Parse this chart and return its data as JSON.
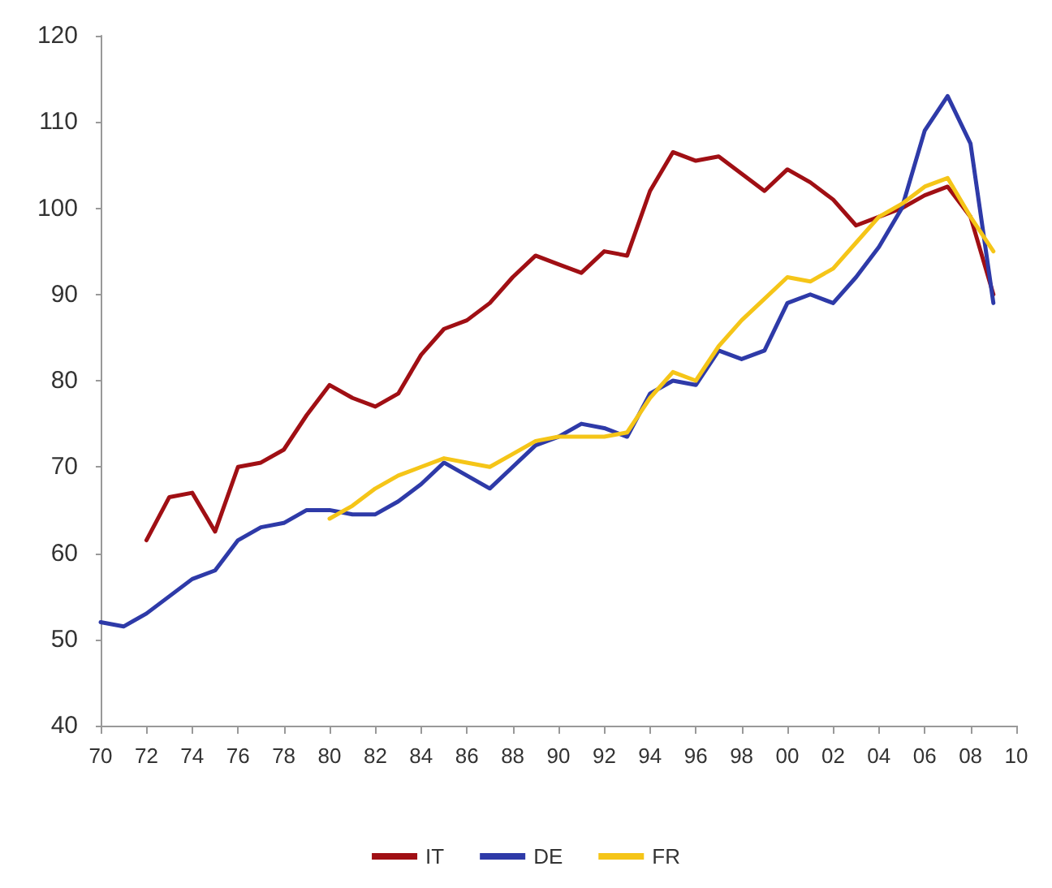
{
  "chart_data": {
    "type": "line",
    "x": [
      1970,
      1971,
      1972,
      1973,
      1974,
      1975,
      1976,
      1977,
      1978,
      1979,
      1980,
      1981,
      1982,
      1983,
      1984,
      1985,
      1986,
      1987,
      1988,
      1989,
      1990,
      1991,
      1992,
      1993,
      1994,
      1995,
      1996,
      1997,
      1998,
      1999,
      2000,
      2001,
      2002,
      2003,
      2004,
      2005,
      2006,
      2007,
      2008,
      2009
    ],
    "series": [
      {
        "name": "IT",
        "color": "#a00f14",
        "values": [
          null,
          null,
          61.5,
          66.5,
          67,
          62.5,
          70,
          70.5,
          72,
          76,
          79.5,
          78,
          77,
          78.5,
          83,
          86,
          87,
          89,
          92,
          94.5,
          93.5,
          92.5,
          95,
          94.5,
          102,
          106.5,
          105.5,
          106,
          104,
          102,
          104.5,
          103,
          101,
          98,
          99,
          100,
          101.5,
          102.5,
          99,
          90
        ]
      },
      {
        "name": "DE",
        "color": "#2e3aa8",
        "values": [
          52,
          51.5,
          53,
          55,
          57,
          58,
          61.5,
          63,
          63.5,
          65,
          65,
          64.5,
          64.5,
          66,
          68,
          70.5,
          69,
          67.5,
          70,
          72.5,
          73.5,
          75,
          74.5,
          73.5,
          78.5,
          80,
          79.5,
          83.5,
          82.5,
          83.5,
          89,
          90,
          89,
          92,
          95.5,
          100,
          109,
          113,
          107.5,
          89
        ]
      },
      {
        "name": "FR",
        "color": "#f5c518",
        "values": [
          null,
          null,
          null,
          null,
          null,
          null,
          null,
          null,
          null,
          null,
          64,
          65.5,
          67.5,
          69,
          70,
          71,
          70.5,
          70,
          71.5,
          73,
          73.5,
          73.5,
          73.5,
          74,
          78,
          81,
          80,
          84,
          87,
          89.5,
          92,
          91.5,
          93,
          96,
          99,
          100.5,
          102.5,
          103.5,
          99,
          95
        ]
      }
    ],
    "xlim": [
      1970,
      2010
    ],
    "xticks": [
      {
        "value": 1970,
        "label": "70"
      },
      {
        "value": 1972,
        "label": "72"
      },
      {
        "value": 1974,
        "label": "74"
      },
      {
        "value": 1976,
        "label": "76"
      },
      {
        "value": 1978,
        "label": "78"
      },
      {
        "value": 1980,
        "label": "80"
      },
      {
        "value": 1982,
        "label": "82"
      },
      {
        "value": 1984,
        "label": "84"
      },
      {
        "value": 1986,
        "label": "86"
      },
      {
        "value": 1988,
        "label": "88"
      },
      {
        "value": 1990,
        "label": "90"
      },
      {
        "value": 1992,
        "label": "92"
      },
      {
        "value": 1994,
        "label": "94"
      },
      {
        "value": 1996,
        "label": "96"
      },
      {
        "value": 1998,
        "label": "98"
      },
      {
        "value": 2000,
        "label": "00"
      },
      {
        "value": 2002,
        "label": "02"
      },
      {
        "value": 2004,
        "label": "04"
      },
      {
        "value": 2006,
        "label": "06"
      },
      {
        "value": 2008,
        "label": "08"
      },
      {
        "value": 2010,
        "label": "10"
      }
    ],
    "ylim": [
      40,
      120
    ],
    "yticks": [
      40,
      50,
      60,
      70,
      80,
      90,
      100,
      110,
      120
    ],
    "grid": false,
    "legend": "bottom",
    "marker": "none",
    "line_style": "solid"
  }
}
